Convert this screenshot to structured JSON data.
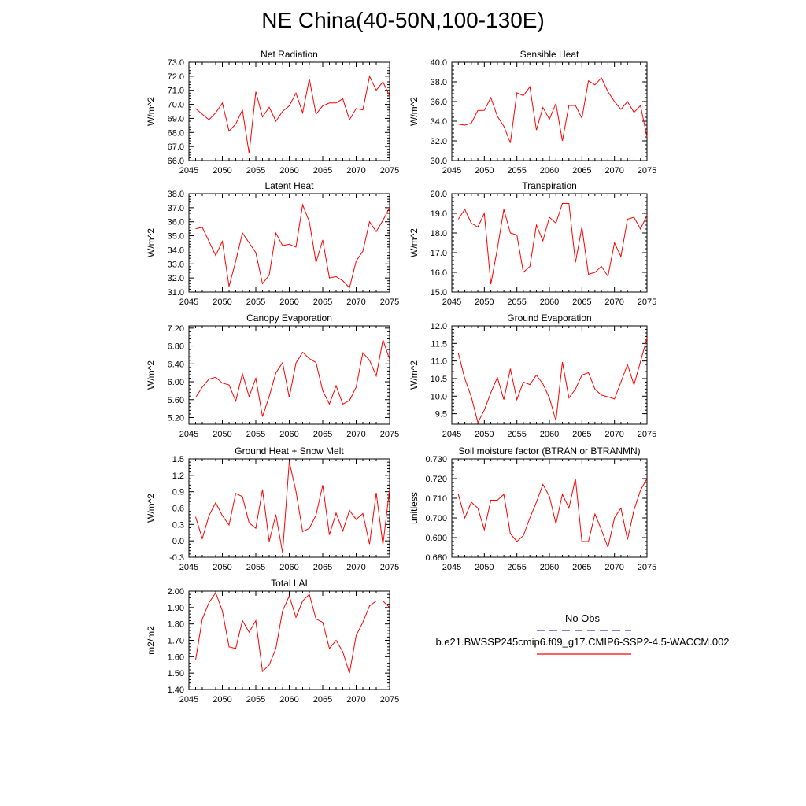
{
  "title": "NE China(40-50N,100-130E)",
  "legend": {
    "obs_label": "No Obs",
    "obs_color": "#3b3bb0",
    "model_label": "b.e21.BWSSP245cmip6.f09_g17.CMIP6-SSP2-4.5-WACCM.002",
    "model_color": "#ff0000"
  },
  "chart_data": [
    {
      "type": "line",
      "title": "Net Radiation",
      "ylabel": "W/m^2",
      "xlim": [
        2045,
        2075
      ],
      "ylim": [
        66.0,
        73.0
      ],
      "xticks": [
        2045,
        2050,
        2055,
        2060,
        2065,
        2070,
        2075
      ],
      "yticks": [
        "66.0",
        "67.0",
        "68.0",
        "69.0",
        "70.0",
        "71.0",
        "72.0",
        "73.0"
      ],
      "x": [
        2046,
        2047,
        2048,
        2049,
        2050,
        2051,
        2052,
        2053,
        2054,
        2055,
        2056,
        2057,
        2058,
        2059,
        2060,
        2061,
        2062,
        2063,
        2064,
        2065,
        2066,
        2067,
        2068,
        2069,
        2070,
        2071,
        2072,
        2073,
        2074,
        2075
      ],
      "values": [
        69.7,
        69.3,
        68.9,
        69.4,
        70.1,
        68.1,
        68.6,
        69.6,
        66.5,
        70.9,
        69.1,
        69.8,
        68.8,
        69.5,
        69.9,
        70.8,
        69.4,
        71.8,
        69.3,
        69.9,
        70.1,
        70.1,
        70.4,
        68.9,
        69.7,
        69.6,
        72.0,
        71.0,
        71.6,
        70.6
      ],
      "series_color": "#ff0000"
    },
    {
      "type": "line",
      "title": "Sensible Heat",
      "ylabel": "W/m^2",
      "xlim": [
        2045,
        2075
      ],
      "ylim": [
        30.0,
        40.0
      ],
      "xticks": [
        2045,
        2050,
        2055,
        2060,
        2065,
        2070,
        2075
      ],
      "yticks": [
        "30.0",
        "32.0",
        "34.0",
        "36.0",
        "38.0",
        "40.0"
      ],
      "x": [
        2046,
        2047,
        2048,
        2049,
        2050,
        2051,
        2052,
        2053,
        2054,
        2055,
        2056,
        2057,
        2058,
        2059,
        2060,
        2061,
        2062,
        2063,
        2064,
        2065,
        2066,
        2067,
        2068,
        2069,
        2070,
        2071,
        2072,
        2073,
        2074,
        2075
      ],
      "values": [
        33.7,
        33.6,
        33.8,
        35.1,
        35.1,
        36.4,
        34.5,
        33.5,
        31.8,
        36.9,
        36.6,
        37.5,
        33.1,
        35.4,
        34.2,
        35.8,
        32.0,
        35.6,
        35.6,
        34.3,
        38.1,
        37.7,
        38.4,
        37.0,
        36.0,
        35.2,
        36.0,
        34.9,
        35.6,
        32.4
      ],
      "series_color": "#ff0000"
    },
    {
      "type": "line",
      "title": "Latent Heat",
      "ylabel": "W/m^2",
      "xlim": [
        2045,
        2075
      ],
      "ylim": [
        31.0,
        38.0
      ],
      "xticks": [
        2045,
        2050,
        2055,
        2060,
        2065,
        2070,
        2075
      ],
      "yticks": [
        "31.0",
        "32.0",
        "33.0",
        "34.0",
        "35.0",
        "36.0",
        "37.0",
        "38.0"
      ],
      "x": [
        2046,
        2047,
        2048,
        2049,
        2050,
        2051,
        2052,
        2053,
        2054,
        2055,
        2056,
        2057,
        2058,
        2059,
        2060,
        2061,
        2062,
        2063,
        2064,
        2065,
        2066,
        2067,
        2068,
        2069,
        2070,
        2071,
        2072,
        2073,
        2074,
        2075
      ],
      "values": [
        35.5,
        35.6,
        34.6,
        33.6,
        34.6,
        31.4,
        33.2,
        35.2,
        34.5,
        33.8,
        31.6,
        32.2,
        35.2,
        34.3,
        34.4,
        34.2,
        37.2,
        36.0,
        33.1,
        34.7,
        32.0,
        32.1,
        31.8,
        31.3,
        33.2,
        33.9,
        36.0,
        35.3,
        36.1,
        37.0
      ],
      "series_color": "#ff0000"
    },
    {
      "type": "line",
      "title": "Transpiration",
      "ylabel": "W/m^2",
      "xlim": [
        2045,
        2075
      ],
      "ylim": [
        15.0,
        20.0
      ],
      "xticks": [
        2045,
        2050,
        2055,
        2060,
        2065,
        2070,
        2075
      ],
      "yticks": [
        "15.0",
        "16.0",
        "17.0",
        "18.0",
        "19.0",
        "20.0"
      ],
      "x": [
        2046,
        2047,
        2048,
        2049,
        2050,
        2051,
        2052,
        2053,
        2054,
        2055,
        2056,
        2057,
        2058,
        2059,
        2060,
        2061,
        2062,
        2063,
        2064,
        2065,
        2066,
        2067,
        2068,
        2069,
        2070,
        2071,
        2072,
        2073,
        2074,
        2075
      ],
      "values": [
        18.7,
        19.2,
        18.5,
        18.3,
        19.0,
        15.4,
        17.2,
        19.2,
        18.0,
        17.9,
        16.0,
        16.3,
        18.4,
        17.6,
        18.8,
        18.5,
        19.5,
        19.5,
        16.5,
        18.3,
        15.9,
        16.0,
        16.3,
        15.8,
        17.5,
        16.8,
        18.7,
        18.8,
        18.2,
        18.9
      ],
      "series_color": "#ff0000"
    },
    {
      "type": "line",
      "title": "Canopy Evaporation",
      "ylabel": "W/m^2",
      "xlim": [
        2045,
        2075
      ],
      "ylim": [
        5.05,
        7.25
      ],
      "xticks": [
        2045,
        2050,
        2055,
        2060,
        2065,
        2070,
        2075
      ],
      "yticks": [
        "5.20",
        "5.60",
        "6.00",
        "6.40",
        "6.80",
        "7.20"
      ],
      "x": [
        2046,
        2047,
        2048,
        2049,
        2050,
        2051,
        2052,
        2053,
        2054,
        2055,
        2056,
        2057,
        2058,
        2059,
        2060,
        2061,
        2062,
        2063,
        2064,
        2065,
        2066,
        2067,
        2068,
        2069,
        2070,
        2071,
        2072,
        2073,
        2074,
        2075
      ],
      "values": [
        5.65,
        5.88,
        6.06,
        6.1,
        5.97,
        5.93,
        5.57,
        6.18,
        5.67,
        6.08,
        5.22,
        5.67,
        6.2,
        6.43,
        5.65,
        6.42,
        6.66,
        6.52,
        6.43,
        5.8,
        5.5,
        5.91,
        5.5,
        5.58,
        5.88,
        6.65,
        6.48,
        6.13,
        6.94,
        6.5
      ],
      "series_color": "#ff0000"
    },
    {
      "type": "line",
      "title": "Ground Evaporation",
      "ylabel": "W/m^2",
      "xlim": [
        2045,
        2075
      ],
      "ylim": [
        9.2,
        12.0
      ],
      "xticks": [
        2045,
        2050,
        2055,
        2060,
        2065,
        2070,
        2075
      ],
      "yticks": [
        "9.5",
        "10.0",
        "10.5",
        "11.0",
        "11.5",
        "12.0"
      ],
      "x": [
        2046,
        2047,
        2048,
        2049,
        2050,
        2051,
        2052,
        2053,
        2054,
        2055,
        2056,
        2057,
        2058,
        2059,
        2060,
        2061,
        2062,
        2063,
        2064,
        2065,
        2066,
        2067,
        2068,
        2069,
        2070,
        2071,
        2072,
        2073,
        2074,
        2075
      ],
      "values": [
        11.22,
        10.5,
        9.98,
        9.25,
        9.6,
        10.1,
        10.53,
        9.9,
        10.78,
        9.9,
        10.4,
        10.33,
        10.6,
        10.35,
        9.95,
        9.3,
        10.97,
        9.95,
        10.2,
        10.6,
        10.67,
        10.2,
        10.03,
        9.98,
        9.92,
        10.4,
        10.9,
        10.32,
        10.98,
        11.65
      ],
      "series_color": "#ff0000"
    },
    {
      "type": "line",
      "title": "Ground Heat + Snow Melt",
      "ylabel": "W/m^2",
      "xlim": [
        2045,
        2075
      ],
      "ylim": [
        -0.3,
        1.5
      ],
      "xticks": [
        2045,
        2050,
        2055,
        2060,
        2065,
        2070,
        2075
      ],
      "yticks": [
        "-0.3",
        "0.0",
        "0.3",
        "0.6",
        "0.9",
        "1.2",
        "1.5"
      ],
      "x": [
        2046,
        2047,
        2048,
        2049,
        2050,
        2051,
        2052,
        2053,
        2054,
        2055,
        2056,
        2057,
        2058,
        2059,
        2060,
        2061,
        2062,
        2063,
        2064,
        2065,
        2066,
        2067,
        2068,
        2069,
        2070,
        2071,
        2072,
        2073,
        2074,
        2075
      ],
      "values": [
        0.44,
        0.04,
        0.46,
        0.7,
        0.46,
        0.29,
        0.87,
        0.81,
        0.33,
        0.23,
        0.94,
        -0.01,
        0.48,
        -0.22,
        1.45,
        0.91,
        0.17,
        0.23,
        0.47,
        1.02,
        0.11,
        0.51,
        0.18,
        0.56,
        0.39,
        0.5,
        -0.06,
        0.88,
        -0.07,
        0.95
      ],
      "series_color": "#ff0000"
    },
    {
      "type": "line",
      "title": "Soil moisture factor (BTRAN or BTRANMN)",
      "ylabel": "unitless",
      "xlim": [
        2045,
        2075
      ],
      "ylim": [
        0.68,
        0.73
      ],
      "xticks": [
        2045,
        2050,
        2055,
        2060,
        2065,
        2070,
        2075
      ],
      "yticks": [
        "0.680",
        "0.690",
        "0.700",
        "0.710",
        "0.720",
        "0.730"
      ],
      "x": [
        2046,
        2047,
        2048,
        2049,
        2050,
        2051,
        2052,
        2053,
        2054,
        2055,
        2056,
        2057,
        2058,
        2059,
        2060,
        2061,
        2062,
        2063,
        2064,
        2065,
        2066,
        2067,
        2068,
        2069,
        2070,
        2071,
        2072,
        2073,
        2074,
        2075
      ],
      "values": [
        0.712,
        0.7,
        0.708,
        0.705,
        0.694,
        0.709,
        0.709,
        0.712,
        0.692,
        0.688,
        0.691,
        0.7,
        0.708,
        0.717,
        0.711,
        0.697,
        0.712,
        0.705,
        0.72,
        0.688,
        0.688,
        0.702,
        0.694,
        0.685,
        0.7,
        0.705,
        0.689,
        0.704,
        0.714,
        0.72
      ],
      "series_color": "#ff0000"
    },
    {
      "type": "line",
      "title": "Total LAI",
      "ylabel": "m2/m2",
      "xlim": [
        2045,
        2075
      ],
      "ylim": [
        1.4,
        2.0
      ],
      "xticks": [
        2045,
        2050,
        2055,
        2060,
        2065,
        2070,
        2075
      ],
      "yticks": [
        "1.40",
        "1.50",
        "1.60",
        "1.70",
        "1.80",
        "1.90",
        "2.00"
      ],
      "x": [
        2046,
        2047,
        2048,
        2049,
        2050,
        2051,
        2052,
        2053,
        2054,
        2055,
        2056,
        2057,
        2058,
        2059,
        2060,
        2061,
        2062,
        2063,
        2064,
        2065,
        2066,
        2067,
        2068,
        2069,
        2070,
        2071,
        2072,
        2073,
        2074,
        2075
      ],
      "values": [
        1.58,
        1.83,
        1.93,
        1.99,
        1.88,
        1.66,
        1.65,
        1.82,
        1.75,
        1.82,
        1.51,
        1.55,
        1.65,
        1.88,
        1.97,
        1.84,
        1.94,
        1.98,
        1.83,
        1.81,
        1.65,
        1.7,
        1.63,
        1.5,
        1.73,
        1.81,
        1.91,
        1.94,
        1.94,
        1.9
      ],
      "series_color": "#ff0000"
    }
  ]
}
